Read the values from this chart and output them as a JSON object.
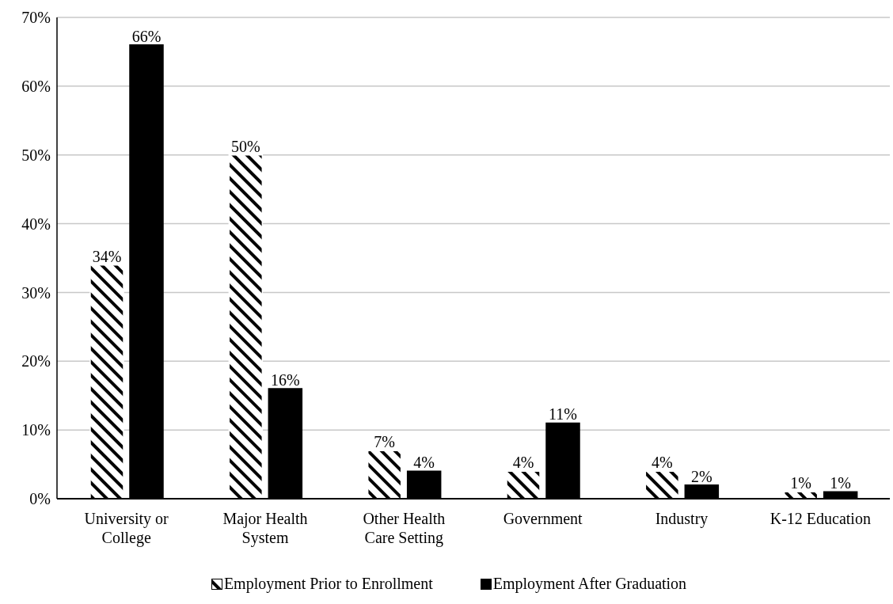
{
  "chart_data": {
    "type": "bar",
    "categories": [
      "University or\nCollege",
      "Major Health\nSystem",
      "Other Health\nCare Setting",
      "Government",
      "Industry",
      "K-12 Education"
    ],
    "series": [
      {
        "name": "Employment Prior to Enrollment",
        "color": "#ffffff",
        "values": [
          34,
          50,
          7,
          4,
          4,
          1
        ],
        "value_labels": [
          "34%",
          "50%",
          "7%",
          "4%",
          "4%",
          "1%"
        ]
      },
      {
        "name": "Employment After Graduation",
        "color": "#000000",
        "values": [
          66,
          16,
          4,
          11,
          2,
          1
        ],
        "value_labels": [
          "66%",
          "16%",
          "4%",
          "11%",
          "2%",
          "1%"
        ]
      }
    ],
    "ylim": [
      0,
      70
    ],
    "yticks": [
      {
        "value": 0,
        "label": "0%"
      },
      {
        "value": 10,
        "label": "10%"
      },
      {
        "value": 20,
        "label": "20%"
      },
      {
        "value": 30,
        "label": "30%"
      },
      {
        "value": 40,
        "label": "40%"
      },
      {
        "value": 50,
        "label": "50%"
      },
      {
        "value": 60,
        "label": "60%"
      },
      {
        "value": 70,
        "label": "70%"
      }
    ],
    "grid": "y",
    "legend": "bottom"
  }
}
